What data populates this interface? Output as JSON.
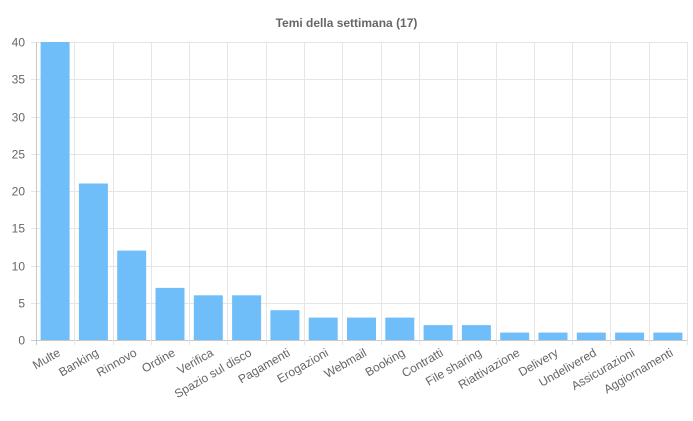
{
  "chart_data": {
    "type": "bar",
    "title": "Temi della settimana (17)",
    "xlabel": "",
    "ylabel": "",
    "categories": [
      "Multe",
      "Banking",
      "Rinnovo",
      "Ordine",
      "Verifica",
      "Spazio sul disco",
      "Pagamenti",
      "Erogazioni",
      "Webmail",
      "Booking",
      "Contratti",
      "File sharing",
      "Riattivazione",
      "Delivery",
      "Undelivered",
      "Assicurazioni",
      "Aggiornamenti"
    ],
    "values": [
      40,
      21,
      12,
      7,
      6,
      6,
      4,
      3,
      3,
      3,
      2,
      2,
      1,
      1,
      1,
      1,
      1
    ],
    "ylim": [
      0,
      40
    ],
    "yticks": [
      0,
      5,
      10,
      15,
      20,
      25,
      30,
      35,
      40
    ],
    "grid": true,
    "legend": "none",
    "bar_color": "#6fbef9",
    "grid_color": "#e5e5e5",
    "text_color": "#666666"
  }
}
